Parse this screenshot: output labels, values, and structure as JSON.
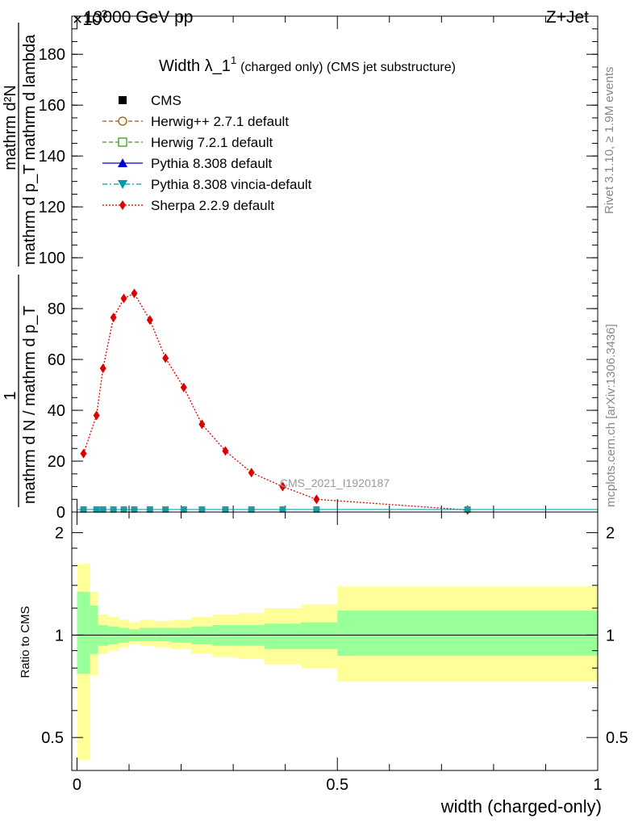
{
  "header": {
    "left": "13000 GeV pp",
    "right": "Z+Jet",
    "exponent": "×10",
    "exponent_power": "3"
  },
  "side_text": {
    "rivet": "Rivet 3.1.10, ≥ 1.9M events",
    "mcplots": "mcplots.cern.ch [arXiv:1306.3436]"
  },
  "analysis_tag": "CMS_2021_I1920187",
  "main_plot": {
    "title_main": "Width λ_1",
    "title_sup": "1",
    "title_rest": "(charged only) (CMS jet substructure)",
    "ylabel_num": "mathrm d²N",
    "ylabel_den": "mathrm d p_T mathrm d lambda",
    "ylabel_prefix_num": "1",
    "ylabel_prefix_den": "mathrm d N / mathrm d p_T",
    "ylim": [
      0,
      195
    ],
    "yticks": [
      {
        "v": 0,
        "label": "0"
      },
      {
        "v": 20,
        "label": "20"
      },
      {
        "v": 40,
        "label": "40"
      },
      {
        "v": 60,
        "label": "60"
      },
      {
        "v": 80,
        "label": "80"
      },
      {
        "v": 100,
        "label": "100"
      },
      {
        "v": 120,
        "label": "120"
      },
      {
        "v": 140,
        "label": "140"
      },
      {
        "v": 160,
        "label": "160"
      },
      {
        "v": 180,
        "label": "180"
      }
    ]
  },
  "ratio_plot": {
    "ylabel": "Ratio to CMS",
    "yticks": [
      {
        "v": 0.5,
        "label": "0.5"
      },
      {
        "v": 1,
        "label": "1"
      },
      {
        "v": 2,
        "label": "2"
      }
    ]
  },
  "xaxis": {
    "label": "width (charged-only)",
    "xlim": [
      -0.01,
      1.0
    ],
    "ticks": [
      {
        "v": 0,
        "label": "0"
      },
      {
        "v": 0.5,
        "label": "0.5"
      },
      {
        "v": 1,
        "label": "1"
      }
    ]
  },
  "legend": [
    {
      "label": "CMS",
      "color": "#000000",
      "marker": "square-filled",
      "line": "none"
    },
    {
      "label": "Herwig++ 2.7.1 default",
      "color": "#a05a00",
      "marker": "circle-open",
      "line": "dashed"
    },
    {
      "label": "Herwig 7.2.1 default",
      "color": "#3a9a1a",
      "marker": "square-open",
      "line": "dashed"
    },
    {
      "label": "Pythia 8.308 default",
      "color": "#0000cc",
      "marker": "triangle-up",
      "line": "solid"
    },
    {
      "label": "Pythia 8.308 vincia-default",
      "color": "#0099aa",
      "marker": "triangle-down",
      "line": "dashdot"
    },
    {
      "label": "Sherpa 2.2.9 default",
      "color": "#dd0000",
      "marker": "diamond",
      "line": "dotted"
    }
  ],
  "chart_data": {
    "type": "line",
    "x": [
      0.0125,
      0.0375,
      0.05,
      0.07,
      0.09,
      0.11,
      0.14,
      0.17,
      0.205,
      0.24,
      0.285,
      0.335,
      0.395,
      0.46,
      0.75
    ],
    "bin_edges": [
      0.0,
      0.025,
      0.04,
      0.06,
      0.08,
      0.1,
      0.12,
      0.15,
      0.18,
      0.22,
      0.26,
      0.31,
      0.36,
      0.43,
      0.5,
      1.0
    ],
    "series": [
      {
        "name": "CMS",
        "values": [
          1,
          1,
          1,
          1,
          1,
          1,
          1,
          1,
          1,
          1,
          1,
          1,
          1,
          1,
          1
        ]
      },
      {
        "name": "Sherpa 2.2.9 default",
        "values": [
          23,
          38,
          56.5,
          76.5,
          84,
          86,
          75.5,
          60.5,
          49,
          34.5,
          24,
          15.5,
          10,
          5,
          0.8
        ]
      }
    ],
    "ratio_bands": {
      "inner": [
        [
          0.77,
          1.34
        ],
        [
          0.88,
          1.22
        ],
        [
          0.93,
          1.07
        ],
        [
          0.94,
          1.06
        ],
        [
          0.95,
          1.05
        ],
        [
          0.96,
          1.04
        ],
        [
          0.96,
          1.05
        ],
        [
          0.96,
          1.05
        ],
        [
          0.95,
          1.05
        ],
        [
          0.94,
          1.06
        ],
        [
          0.93,
          1.07
        ],
        [
          0.93,
          1.07
        ],
        [
          0.91,
          1.08
        ],
        [
          0.91,
          1.09
        ],
        [
          0.87,
          1.18
        ]
      ],
      "outer": [
        [
          0.43,
          1.62
        ],
        [
          0.76,
          1.34
        ],
        [
          0.88,
          1.15
        ],
        [
          0.9,
          1.13
        ],
        [
          0.92,
          1.11
        ],
        [
          0.94,
          1.09
        ],
        [
          0.93,
          1.11
        ],
        [
          0.92,
          1.1
        ],
        [
          0.91,
          1.11
        ],
        [
          0.88,
          1.13
        ],
        [
          0.86,
          1.15
        ],
        [
          0.85,
          1.16
        ],
        [
          0.82,
          1.2
        ],
        [
          0.8,
          1.23
        ],
        [
          0.73,
          1.39
        ]
      ]
    },
    "ratio_ylim": [
      0.4,
      2.3
    ],
    "ratio_scale": "log"
  }
}
